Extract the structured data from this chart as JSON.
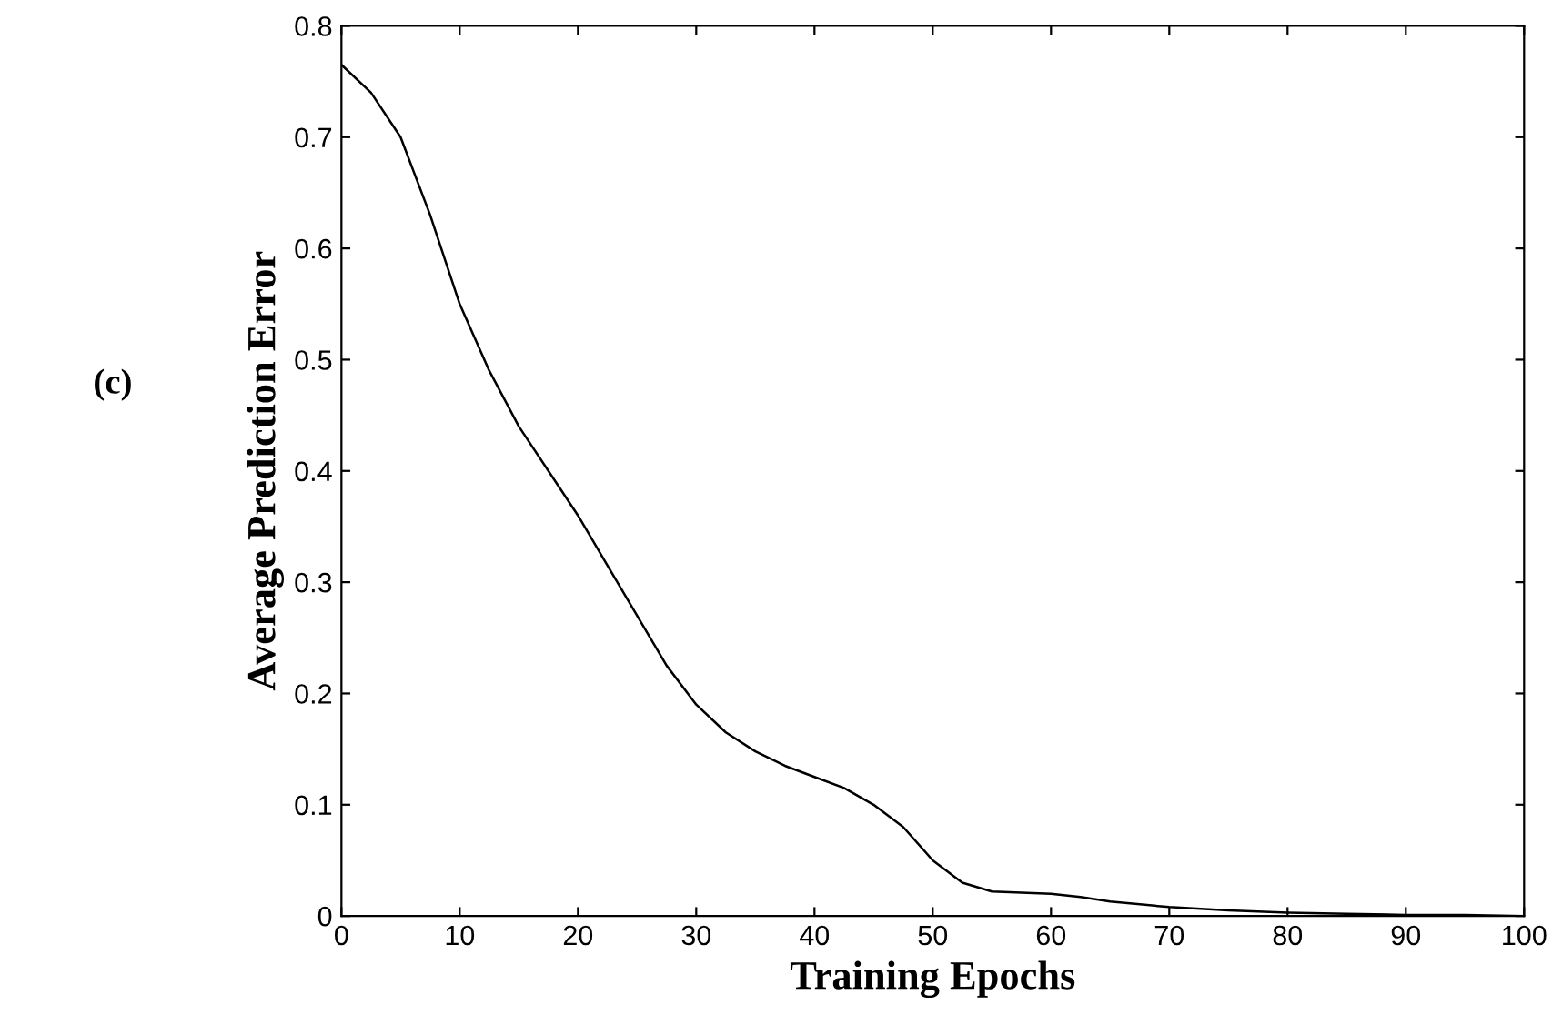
{
  "chart_data": {
    "type": "line",
    "xlabel": "Training Epochs",
    "ylabel": "Average Prediction Error",
    "annotations": [
      "(c)"
    ],
    "series": [
      {
        "color": "#000000",
        "x": [
          0,
          2.5,
          5,
          7.5,
          10,
          12.5,
          15,
          17.5,
          20,
          22.5,
          25,
          27.5,
          30,
          32.5,
          35,
          37.5,
          40,
          42.5,
          45,
          47.5,
          50,
          52.5,
          55,
          57.5,
          60,
          62.5,
          65,
          70,
          75,
          80,
          85,
          90,
          95,
          100
        ],
        "values": [
          0.765,
          0.74,
          0.7,
          0.63,
          0.55,
          0.49,
          0.44,
          0.4,
          0.36,
          0.315,
          0.27,
          0.225,
          0.19,
          0.165,
          0.148,
          0.135,
          0.125,
          0.115,
          0.1,
          0.08,
          0.05,
          0.03,
          0.022,
          0.021,
          0.02,
          0.017,
          0.013,
          0.008,
          0.005,
          0.003,
          0.002,
          0.001,
          0.001,
          0
        ]
      }
    ],
    "xlim": [
      0,
      100
    ],
    "ylim": [
      0,
      0.8
    ],
    "xticks": [
      0,
      10,
      20,
      30,
      40,
      50,
      60,
      70,
      80,
      90,
      100
    ],
    "yticks": [
      0,
      0.1,
      0.2,
      0.3,
      0.4,
      0.5,
      0.6,
      0.7,
      0.8
    ],
    "grid": false,
    "legend": false,
    "marker": "none",
    "line_style": "solid"
  }
}
